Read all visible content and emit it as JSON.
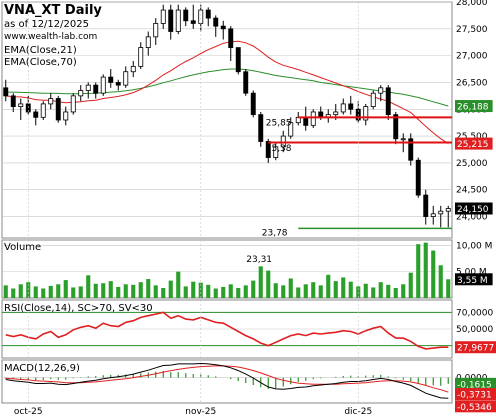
{
  "header": {
    "title": "VNA_XT Daily",
    "asof": "as of 12/12/2025",
    "site": "www.wealth-lab.com",
    "ema_short_label": "EMA(Close,21)",
    "ema_long_label": "EMA(Close,70)"
  },
  "colors": {
    "candle": "#000000",
    "ema21": "#e02020",
    "ema70": "#2a8f2a",
    "support_line": "#2a8f2a",
    "resistance_line": "#e01010",
    "volume": "#2aa02a",
    "rsi": "#e02020",
    "rsi_bands": "#2a8f2a",
    "macd": "#000000",
    "macd_signal": "#e02020",
    "macd_hist": "#2a8f2a",
    "grid": "#c8c8c8"
  },
  "chart_data": [
    {
      "type": "candlestick",
      "title": "VNA_XT Daily",
      "ylim": [
        23600,
        28000
      ],
      "y_ticks": [
        "28,000",
        "27,500",
        "27,000",
        "26,500",
        "26,000",
        "25,500",
        "25,000",
        "24,500",
        "24,000"
      ],
      "x_ticks": [
        "oct-25",
        "nov-25",
        "dic-25"
      ],
      "grid": true,
      "ohlc": [
        [
          26400,
          26550,
          26150,
          26250
        ],
        [
          26250,
          26300,
          25950,
          26050
        ],
        [
          26050,
          26200,
          25800,
          26100
        ],
        [
          26100,
          26250,
          25900,
          25950
        ],
        [
          25950,
          26000,
          25700,
          25850
        ],
        [
          25850,
          26150,
          25800,
          26100
        ],
        [
          26100,
          26300,
          26000,
          26200
        ],
        [
          26200,
          26250,
          25750,
          25800
        ],
        [
          25800,
          26050,
          25700,
          25950
        ],
        [
          25950,
          26300,
          25900,
          26250
        ],
        [
          26250,
          26450,
          26150,
          26350
        ],
        [
          26350,
          26500,
          26200,
          26450
        ],
        [
          26450,
          26500,
          26200,
          26300
        ],
        [
          26300,
          26650,
          26250,
          26600
        ],
        [
          26600,
          26750,
          26400,
          26500
        ],
        [
          26500,
          26550,
          26350,
          26450
        ],
        [
          26450,
          26800,
          26400,
          26700
        ],
        [
          26700,
          26900,
          26600,
          26800
        ],
        [
          26800,
          27250,
          26750,
          27150
        ],
        [
          27150,
          27450,
          27000,
          27350
        ],
        [
          27350,
          27700,
          27200,
          27600
        ],
        [
          27600,
          27950,
          27500,
          27850
        ],
        [
          27850,
          27950,
          27300,
          27450
        ],
        [
          27450,
          27950,
          27400,
          27850
        ],
        [
          27850,
          27900,
          27550,
          27650
        ],
        [
          27650,
          27950,
          27500,
          27600
        ],
        [
          27600,
          27950,
          27450,
          27850
        ],
        [
          27850,
          27900,
          27550,
          27700
        ],
        [
          27700,
          27750,
          27350,
          27550
        ],
        [
          27550,
          27650,
          27300,
          27500
        ],
        [
          27500,
          27550,
          26900,
          27150
        ],
        [
          27150,
          27150,
          26650,
          26700
        ],
        [
          26700,
          26750,
          26250,
          26300
        ],
        [
          26300,
          26350,
          25850,
          25900
        ],
        [
          25900,
          25950,
          25300,
          25400
        ],
        [
          25400,
          25450,
          25000,
          25100
        ],
        [
          25100,
          25400,
          25050,
          25300
        ],
        [
          25300,
          25600,
          25200,
          25500
        ],
        [
          25500,
          25850,
          25450,
          25750
        ],
        [
          25750,
          25950,
          25700,
          25850
        ],
        [
          25850,
          26050,
          25600,
          25700
        ],
        [
          25700,
          26000,
          25650,
          25950
        ],
        [
          25950,
          26050,
          25800,
          25850
        ],
        [
          25850,
          26000,
          25750,
          25900
        ],
        [
          25900,
          26100,
          25800,
          25950
        ],
        [
          25950,
          26200,
          25900,
          26100
        ],
        [
          26100,
          26250,
          25900,
          26000
        ],
        [
          26000,
          26150,
          25750,
          25800
        ],
        [
          25800,
          26100,
          25700,
          26050
        ],
        [
          26050,
          26350,
          26000,
          26300
        ],
        [
          26300,
          26450,
          26150,
          26400
        ],
        [
          26400,
          26450,
          25800,
          25900
        ],
        [
          25900,
          25950,
          25350,
          25450
        ],
        [
          25450,
          25550,
          25200,
          25450
        ],
        [
          25450,
          25550,
          24950,
          25050
        ],
        [
          25050,
          25100,
          24350,
          24400
        ],
        [
          24400,
          24500,
          23850,
          24000
        ],
        [
          24000,
          24200,
          23850,
          24050
        ],
        [
          24050,
          24200,
          23800,
          24100
        ],
        [
          24100,
          24200,
          23800,
          24150
        ]
      ],
      "series": [
        {
          "name": "EMA(Close,21)",
          "values": [
            26250,
            26235,
            26230,
            26210,
            26180,
            26170,
            26170,
            26140,
            26120,
            26130,
            26140,
            26160,
            26170,
            26200,
            26220,
            26240,
            26270,
            26310,
            26370,
            26450,
            26540,
            26640,
            26720,
            26810,
            26890,
            26960,
            27040,
            27110,
            27170,
            27230,
            27260,
            27270,
            27240,
            27180,
            27080,
            26970,
            26880,
            26820,
            26780,
            26740,
            26690,
            26640,
            26590,
            26540,
            26490,
            26440,
            26390,
            26330,
            26280,
            26230,
            26190,
            26150,
            26080,
            26010,
            25940,
            25810,
            25680,
            25560,
            25450,
            25360
          ]
        },
        {
          "name": "EMA(Close,70)",
          "values": [
            26320,
            26320,
            26315,
            26310,
            26305,
            26300,
            26300,
            26295,
            26290,
            26290,
            26290,
            26295,
            26300,
            26310,
            26320,
            26330,
            26345,
            26365,
            26390,
            26420,
            26455,
            26495,
            26530,
            26570,
            26610,
            26640,
            26670,
            26700,
            26720,
            26740,
            26750,
            26750,
            26740,
            26720,
            26690,
            26660,
            26630,
            26610,
            26590,
            26570,
            26550,
            26530,
            26500,
            26480,
            26460,
            26440,
            26420,
            26400,
            26380,
            26360,
            26340,
            26320,
            26300,
            26280,
            26250,
            26220,
            26180,
            26140,
            26100,
            26060
          ]
        }
      ],
      "annotations": [
        "25,85",
        "25,38",
        "23,78"
      ],
      "last_labels": [
        "26,188",
        "25,215",
        "24,150"
      ],
      "horizontal_lines": [
        {
          "y": 25850,
          "from": 39,
          "to": 59
        },
        {
          "y": 25380,
          "from": 35,
          "to": 59
        },
        {
          "y": 23780,
          "from": 39,
          "to": 59
        }
      ]
    },
    {
      "type": "bar",
      "title": "Volume",
      "ylim": [
        0,
        11000000
      ],
      "y_ticks": [
        "10,00 M",
        "5,00 M"
      ],
      "last_label": "3,55 M",
      "annotation": "23,31",
      "values": [
        2.4,
        1.8,
        2.6,
        3.0,
        2.2,
        1.8,
        2.3,
        2.6,
        3.4,
        2.0,
        2.2,
        4.3,
        2.7,
        2.8,
        3.2,
        2.1,
        2.6,
        2.5,
        3.0,
        3.6,
        2.4,
        1.9,
        3.3,
        5.0,
        2.2,
        3.1,
        2.9,
        2.5,
        1.8,
        2.1,
        2.6,
        1.9,
        2.4,
        3.3,
        6.0,
        5.2,
        2.8,
        2.4,
        3.7,
        2.0,
        2.6,
        3.0,
        2.4,
        4.4,
        3.2,
        3.9,
        3.1,
        2.2,
        2.7,
        2.0,
        3.0,
        2.5,
        1.9,
        2.6,
        4.8,
        10.2,
        10.5,
        9.0,
        6.2,
        3.55
      ]
    },
    {
      "type": "line",
      "title": "RSI(Close,14), SC>70, SV<30",
      "ylim": [
        15,
        85
      ],
      "y_ticks": [
        "70,0000",
        "50,0000"
      ],
      "last_label": "27,9677",
      "bands": [
        70,
        30
      ],
      "series": [
        {
          "name": "RSI(Close,14)",
          "values": [
            43,
            41,
            43,
            40,
            38,
            44,
            47,
            40,
            43,
            49,
            52,
            54,
            51,
            57,
            54,
            53,
            58,
            60,
            64,
            66,
            68,
            70,
            63,
            66,
            62,
            61,
            64,
            61,
            58,
            57,
            52,
            47,
            42,
            38,
            33,
            30,
            34,
            38,
            42,
            44,
            42,
            45,
            44,
            45,
            46,
            48,
            47,
            44,
            48,
            51,
            53,
            45,
            39,
            39,
            35,
            29,
            26,
            27,
            28,
            28
          ]
        }
      ]
    },
    {
      "type": "line",
      "title": "MACD(12,26,9)",
      "ylim": [
        -0.65,
        0.45
      ],
      "y_ticks": [
        "0,0000"
      ],
      "last_labels": [
        "-0,1615",
        "-0,3731",
        "-0,5346"
      ],
      "series": [
        {
          "name": "MACD(12,26,9)",
          "values": [
            -0.05,
            -0.08,
            -0.1,
            -0.12,
            -0.15,
            -0.15,
            -0.14,
            -0.17,
            -0.18,
            -0.15,
            -0.12,
            -0.09,
            -0.07,
            -0.03,
            0.0,
            0.02,
            0.05,
            0.09,
            0.14,
            0.19,
            0.25,
            0.31,
            0.32,
            0.35,
            0.35,
            0.35,
            0.36,
            0.35,
            0.33,
            0.3,
            0.25,
            0.18,
            0.09,
            -0.01,
            -0.13,
            -0.24,
            -0.29,
            -0.3,
            -0.28,
            -0.25,
            -0.24,
            -0.21,
            -0.19,
            -0.17,
            -0.15,
            -0.12,
            -0.1,
            -0.1,
            -0.08,
            -0.05,
            -0.02,
            -0.05,
            -0.1,
            -0.14,
            -0.2,
            -0.3,
            -0.4,
            -0.46,
            -0.52,
            -0.53
          ]
        },
        {
          "name": "Signal",
          "values": [
            -0.02,
            -0.03,
            -0.05,
            -0.06,
            -0.08,
            -0.09,
            -0.1,
            -0.11,
            -0.13,
            -0.13,
            -0.13,
            -0.12,
            -0.11,
            -0.09,
            -0.07,
            -0.05,
            -0.03,
            0.0,
            0.03,
            0.06,
            0.1,
            0.14,
            0.18,
            0.21,
            0.24,
            0.26,
            0.28,
            0.29,
            0.3,
            0.3,
            0.29,
            0.27,
            0.23,
            0.18,
            0.12,
            0.05,
            -0.02,
            -0.07,
            -0.11,
            -0.14,
            -0.16,
            -0.17,
            -0.17,
            -0.17,
            -0.17,
            -0.16,
            -0.15,
            -0.14,
            -0.13,
            -0.11,
            -0.09,
            -0.08,
            -0.08,
            -0.09,
            -0.11,
            -0.15,
            -0.2,
            -0.26,
            -0.31,
            -0.37
          ]
        }
      ]
    }
  ]
}
